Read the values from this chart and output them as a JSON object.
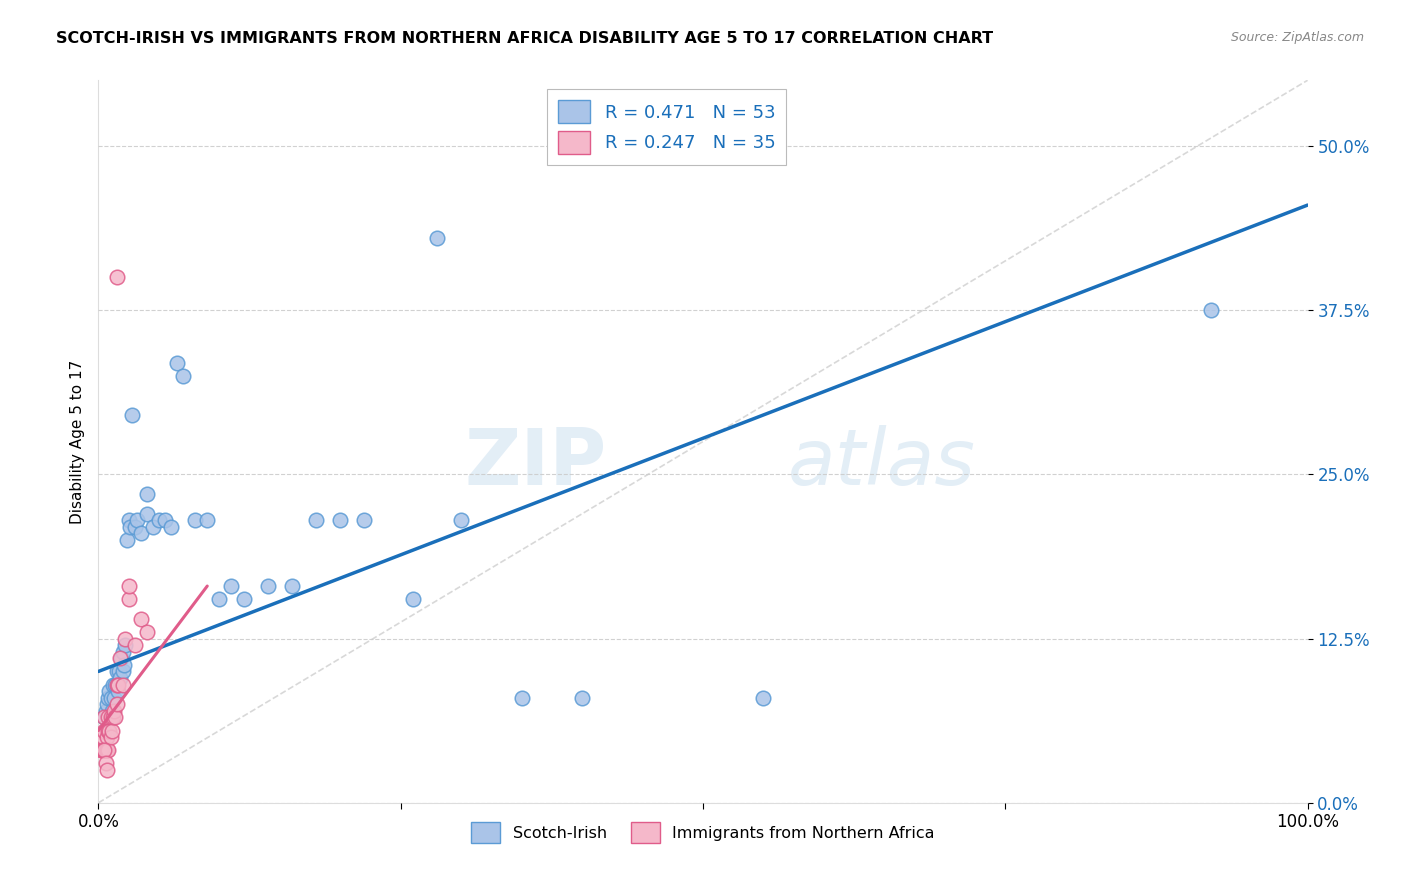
{
  "title": "SCOTCH-IRISH VS IMMIGRANTS FROM NORTHERN AFRICA DISABILITY AGE 5 TO 17 CORRELATION CHART",
  "source": "Source: ZipAtlas.com",
  "ylabel": "Disability Age 5 to 17",
  "xmin": 0.0,
  "xmax": 1.0,
  "ymin": 0.0,
  "ymax": 0.55,
  "yticks": [
    0.0,
    0.125,
    0.25,
    0.375,
    0.5
  ],
  "ytick_labels": [
    "0.0%",
    "12.5%",
    "25.0%",
    "37.5%",
    "50.0%"
  ],
  "xtick_vals": [
    0.0,
    0.25,
    0.5,
    0.75,
    1.0
  ],
  "xtick_labels": [
    "0.0%",
    "",
    "",
    "",
    "100.0%"
  ],
  "series1_fill": "#aac4e8",
  "series1_edge": "#5b9bd5",
  "series2_fill": "#f5b8ca",
  "series2_edge": "#e05c8a",
  "trend1_color": "#1a6fba",
  "trend2_color": "#e05c8a",
  "diag_color": "#c8c8c8",
  "R1": 0.471,
  "N1": 53,
  "R2": 0.247,
  "N2": 35,
  "legend_label1": "Scotch-Irish",
  "legend_label2": "Immigrants from Northern Africa",
  "watermark_zip": "ZIP",
  "watermark_atlas": "atlas",
  "text_color_blue": "#1a6fba",
  "trend1_x0": 0.0,
  "trend1_y0": 0.1,
  "trend1_x1": 1.0,
  "trend1_y1": 0.455,
  "trend2_x0": 0.0,
  "trend2_y0": 0.055,
  "trend2_x1": 0.09,
  "trend2_y1": 0.165,
  "scatter1_x": [
    0.005,
    0.006,
    0.007,
    0.008,
    0.009,
    0.01,
    0.01,
    0.011,
    0.012,
    0.013,
    0.014,
    0.015,
    0.015,
    0.016,
    0.017,
    0.018,
    0.019,
    0.02,
    0.02,
    0.021,
    0.022,
    0.024,
    0.025,
    0.026,
    0.028,
    0.03,
    0.032,
    0.035,
    0.04,
    0.04,
    0.045,
    0.05,
    0.055,
    0.06,
    0.065,
    0.07,
    0.08,
    0.09,
    0.1,
    0.11,
    0.12,
    0.14,
    0.16,
    0.18,
    0.2,
    0.22,
    0.26,
    0.3,
    0.35,
    0.4,
    0.55,
    0.92,
    0.28
  ],
  "scatter1_y": [
    0.065,
    0.07,
    0.075,
    0.08,
    0.085,
    0.065,
    0.08,
    0.07,
    0.09,
    0.08,
    0.09,
    0.09,
    0.1,
    0.085,
    0.1,
    0.095,
    0.11,
    0.1,
    0.115,
    0.105,
    0.12,
    0.2,
    0.215,
    0.21,
    0.295,
    0.21,
    0.215,
    0.205,
    0.22,
    0.235,
    0.21,
    0.215,
    0.215,
    0.21,
    0.335,
    0.325,
    0.215,
    0.215,
    0.155,
    0.165,
    0.155,
    0.165,
    0.165,
    0.215,
    0.215,
    0.215,
    0.155,
    0.215,
    0.08,
    0.08,
    0.08,
    0.375,
    0.43
  ],
  "scatter2_x": [
    0.002,
    0.003,
    0.004,
    0.004,
    0.005,
    0.005,
    0.005,
    0.006,
    0.007,
    0.007,
    0.008,
    0.008,
    0.008,
    0.009,
    0.01,
    0.01,
    0.011,
    0.012,
    0.013,
    0.014,
    0.015,
    0.015,
    0.016,
    0.018,
    0.02,
    0.022,
    0.025,
    0.03,
    0.035,
    0.04,
    0.005,
    0.006,
    0.007,
    0.015,
    0.025
  ],
  "scatter2_y": [
    0.04,
    0.04,
    0.04,
    0.05,
    0.04,
    0.055,
    0.065,
    0.04,
    0.04,
    0.05,
    0.04,
    0.055,
    0.065,
    0.055,
    0.05,
    0.065,
    0.055,
    0.065,
    0.07,
    0.065,
    0.075,
    0.09,
    0.09,
    0.11,
    0.09,
    0.125,
    0.155,
    0.12,
    0.14,
    0.13,
    0.04,
    0.03,
    0.025,
    0.4,
    0.165
  ]
}
